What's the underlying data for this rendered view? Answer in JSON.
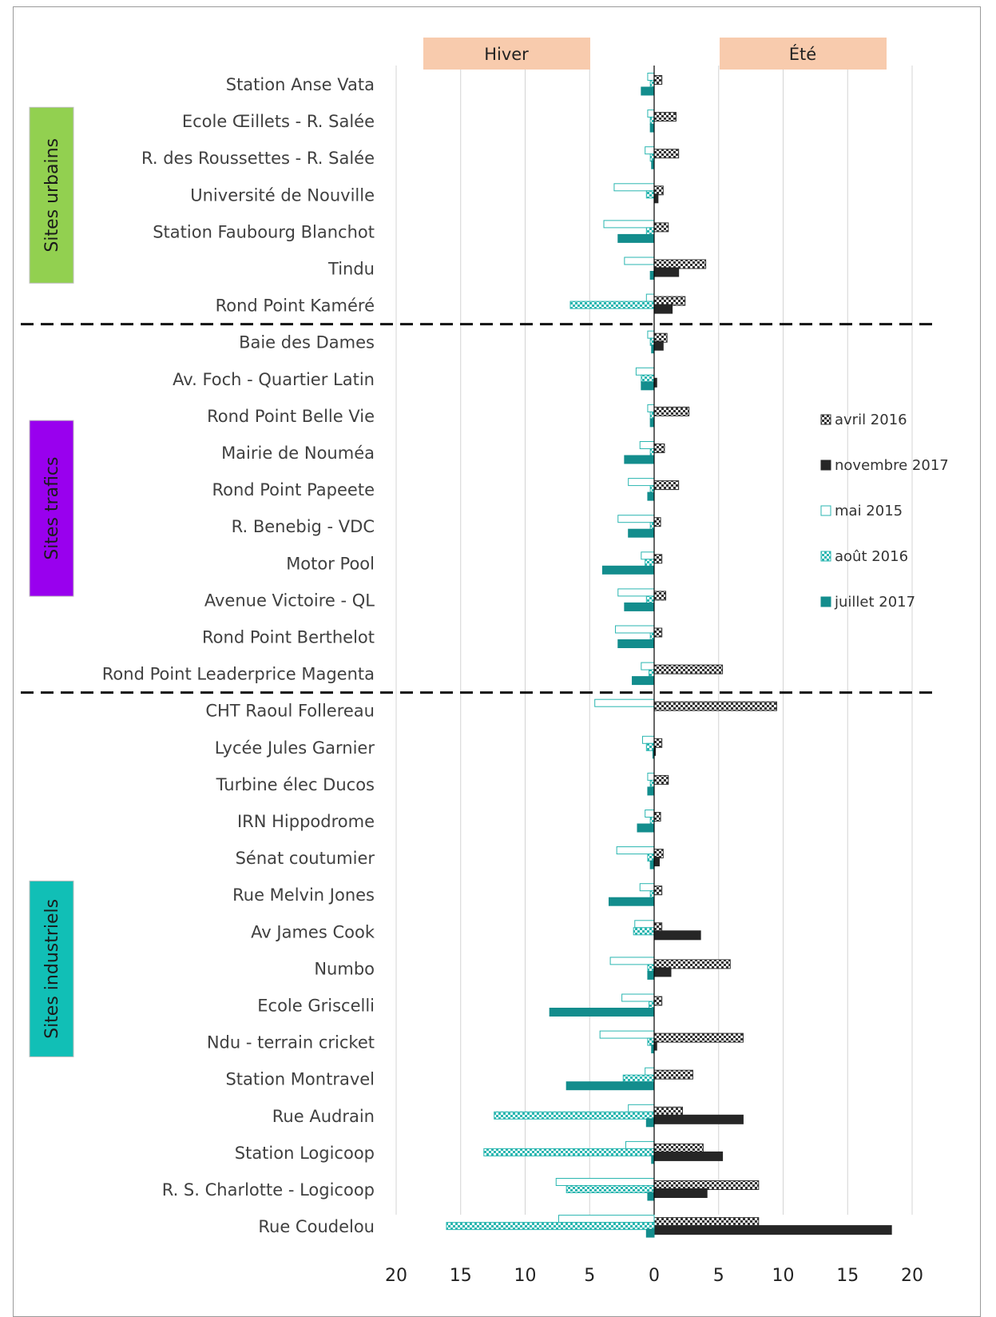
{
  "chart_data": {
    "type": "bar",
    "orientation": "horizontal-diverging",
    "sides": {
      "left": "Hiver",
      "right": "Été"
    },
    "xlim": [
      -20,
      20
    ],
    "x_ticks": [
      "20",
      "15",
      "10",
      "5",
      "0",
      "5",
      "10",
      "15",
      "20"
    ],
    "legend_position": "right",
    "groups": [
      {
        "label": "Sites urbains",
        "color": "#92d050",
        "from": 0,
        "to": 6
      },
      {
        "label": "Sites trafics",
        "color": "#9900ee",
        "from": 7,
        "to": 16
      },
      {
        "label": "Sites  industriels",
        "color": "#11bfb6",
        "from": 17,
        "to": 31
      }
    ],
    "categories": [
      "Station Anse Vata",
      "Ecole Œillets - R. Salée",
      "R. des Roussettes - R. Salée",
      "Université de Nouville",
      "Station Faubourg Blanchot",
      "Tindu",
      "Rond Point Kaméré",
      "Baie des Dames",
      "Av. Foch - Quartier Latin",
      "Rond Point Belle Vie",
      "Mairie de Nouméa",
      "Rond Point Papeete",
      "R. Benebig -  VDC",
      "Motor Pool",
      "Avenue Victoire - QL",
      "Rond Point Berthelot",
      "Rond Point Leaderprice Magenta",
      "CHT Raoul Follereau",
      "Lycée Jules Garnier",
      "Turbine élec Ducos",
      "IRN Hippodrome",
      "Sénat coutumier",
      "Rue Melvin Jones",
      "Av James Cook",
      "Numbo",
      "Ecole Griscelli",
      "Ndu - terrain cricket",
      "Station Montravel",
      "Rue Audrain",
      "Station Logicoop",
      "R. S. Charlotte - Logicoop",
      "Rue Coudelou"
    ],
    "series": [
      {
        "name": "avril 2016",
        "season": "Été",
        "color": "#333333",
        "pattern": "checker",
        "values": [
          0.6,
          1.7,
          1.9,
          0.7,
          1.1,
          4.0,
          2.4,
          1.0,
          0,
          2.7,
          0.8,
          1.9,
          0.5,
          0.6,
          0.9,
          0.6,
          5.3,
          9.5,
          0.6,
          1.1,
          0.5,
          0.7,
          0.6,
          0.6,
          5.9,
          0.6,
          6.9,
          3.0,
          2.2,
          3.8,
          8.1,
          8.1
        ]
      },
      {
        "name": "novembre 2017",
        "season": "Été",
        "color": "#262626",
        "pattern": "solid",
        "values": [
          0,
          0,
          0,
          0.3,
          0,
          1.9,
          1.4,
          0.7,
          0.2,
          0,
          0,
          0,
          0,
          0,
          0,
          0,
          0,
          0,
          0.1,
          0,
          0,
          0.4,
          0,
          3.6,
          1.3,
          0,
          0.2,
          0,
          6.9,
          5.3,
          4.1,
          18.4
        ]
      },
      {
        "name": "mai 2015",
        "season": "Hiver",
        "color": "#2ab6b0",
        "pattern": "outline",
        "values": [
          0.5,
          0.5,
          0.7,
          3.1,
          3.9,
          2.3,
          0.6,
          0.5,
          1.4,
          0.5,
          1.1,
          2.0,
          2.8,
          1.0,
          2.8,
          3.0,
          1.0,
          4.6,
          0.9,
          0.5,
          0.7,
          2.9,
          1.1,
          1.5,
          3.4,
          2.5,
          4.2,
          0.7,
          2.0,
          2.2,
          7.6,
          7.4
        ]
      },
      {
        "name": "août 2016",
        "season": "Hiver",
        "color": "#2ab6b0",
        "pattern": "checker",
        "values": [
          0.3,
          0.3,
          0.3,
          0.6,
          0.6,
          0,
          6.5,
          0.3,
          1.0,
          0.3,
          0.3,
          0.3,
          0.3,
          0.7,
          0.6,
          0.3,
          0.4,
          0,
          0.6,
          0.3,
          0.3,
          0.5,
          0.3,
          1.6,
          0.5,
          0.4,
          0.5,
          2.4,
          12.4,
          13.2,
          6.8,
          16.1
        ]
      },
      {
        "name": "juillet 2017",
        "season": "Hiver",
        "color": "#138d8d",
        "pattern": "solid",
        "values": [
          1.0,
          0.3,
          0.2,
          0,
          2.8,
          0.3,
          0,
          0.2,
          1.0,
          0.3,
          2.3,
          0.5,
          2.0,
          4.0,
          2.3,
          2.8,
          1.7,
          0,
          0.1,
          0.5,
          1.3,
          0.3,
          3.5,
          0,
          0.5,
          8.1,
          0.2,
          6.8,
          0.6,
          0.2,
          0.5,
          0.6
        ]
      }
    ]
  }
}
